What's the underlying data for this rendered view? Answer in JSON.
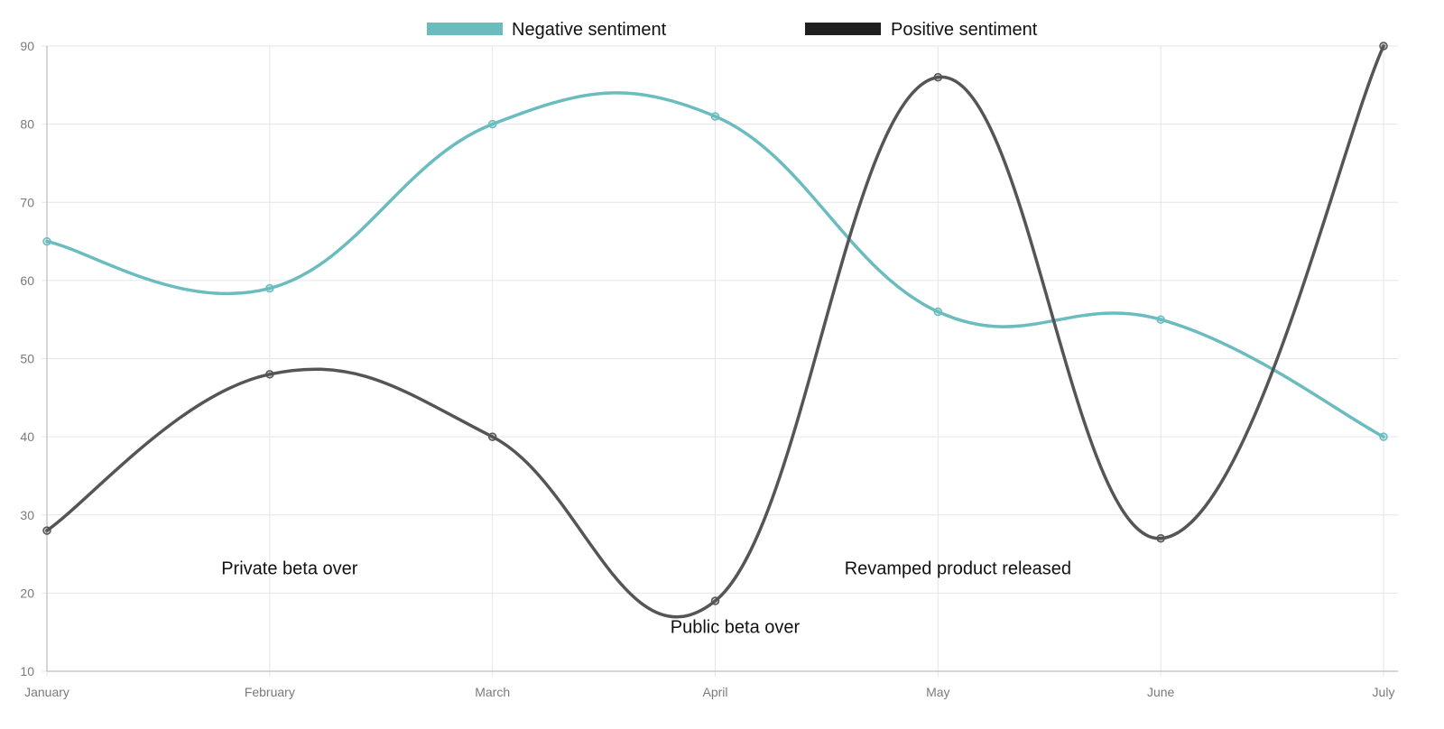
{
  "chart_data": {
    "type": "line",
    "categories": [
      "January",
      "February",
      "March",
      "April",
      "May",
      "June",
      "July"
    ],
    "series": [
      {
        "name": "Negative sentiment",
        "color": "#6bbcbf",
        "values": [
          65,
          59,
          80,
          81,
          56,
          55,
          40
        ]
      },
      {
        "name": "Positive sentiment",
        "color": "#555555",
        "legend_color": "#1f1f1f",
        "values": [
          28,
          48,
          40,
          19,
          86,
          27,
          90
        ]
      }
    ],
    "ylim": [
      10,
      90
    ],
    "yticks": [
      10,
      20,
      30,
      40,
      50,
      60,
      70,
      80,
      90
    ],
    "grid": true,
    "smooth": true,
    "legend_position": "top",
    "annotations": [
      {
        "text": "Private beta over",
        "x": "February",
        "y": 22.4
      },
      {
        "text": "Public beta over",
        "x": "April",
        "y": 14.9
      },
      {
        "text": "Revamped product released",
        "x": "May",
        "y": 22.4
      }
    ]
  }
}
